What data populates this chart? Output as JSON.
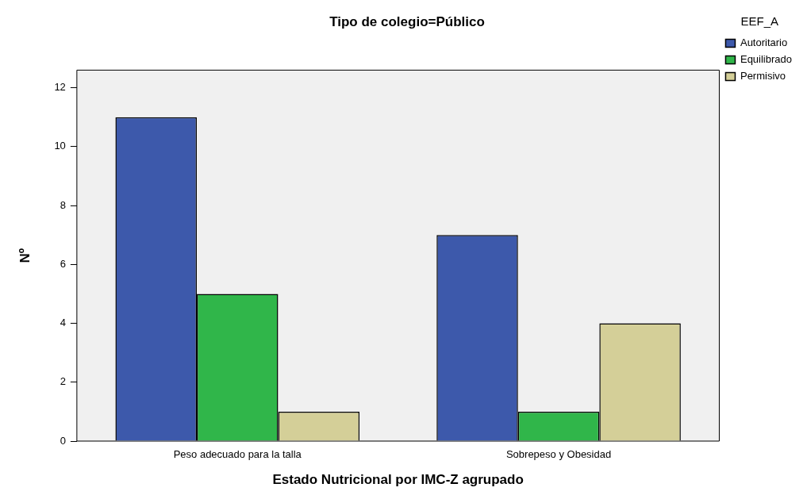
{
  "chart_data": {
    "type": "bar",
    "title": "Tipo de colegio=Público",
    "xlabel": "Estado Nutricional por IMC-Z agrupado",
    "ylabel": "Nº",
    "legend_title": "EEF_A",
    "categories": [
      "Peso adecuado para la talla",
      "Sobrepeso y Obesidad"
    ],
    "series": [
      {
        "name": "Autoritario",
        "color": "#3d59ab",
        "values": [
          11,
          7
        ]
      },
      {
        "name": "Equilibrado",
        "color": "#30b64a",
        "values": [
          5,
          1
        ]
      },
      {
        "name": "Permisivo",
        "color": "#d4cf98",
        "values": [
          1,
          4
        ]
      }
    ],
    "ylim": [
      0,
      12.6
    ],
    "yticks": [
      0,
      2,
      4,
      6,
      8,
      10,
      12
    ],
    "grid": false,
    "legend": "top right"
  }
}
